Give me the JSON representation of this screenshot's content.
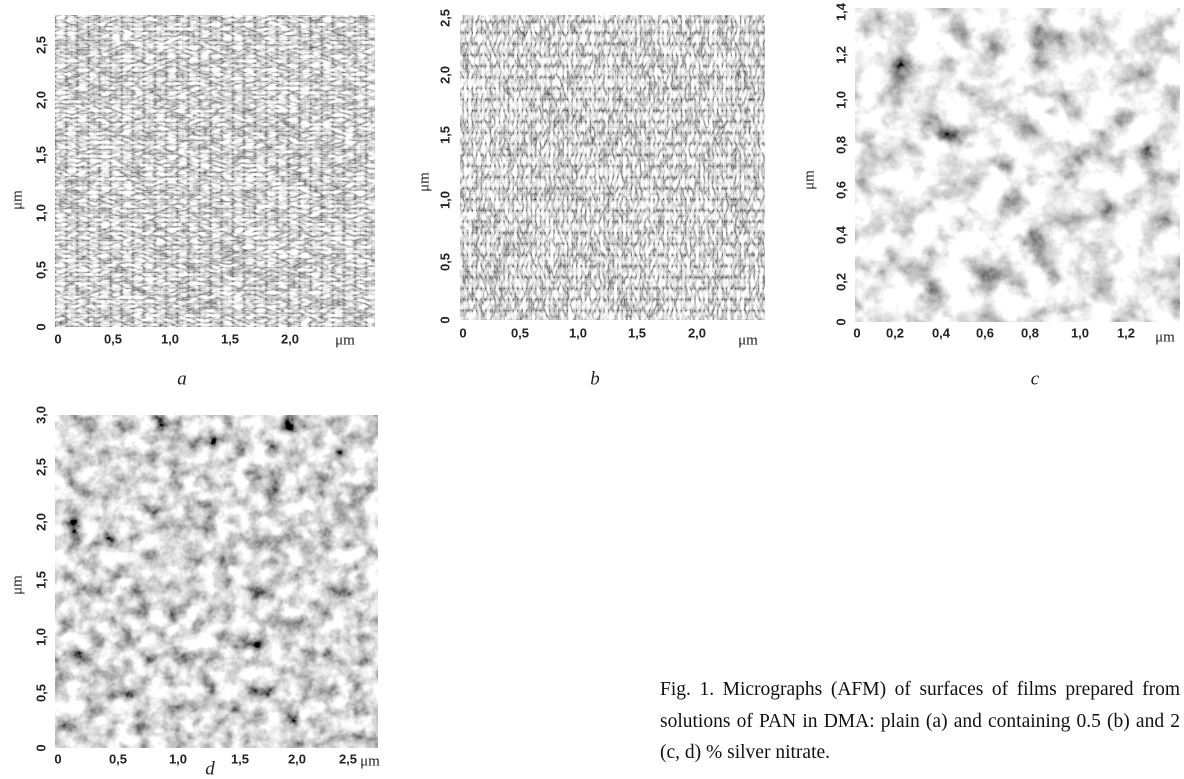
{
  "panels": [
    {
      "letter": "a",
      "x_unit": "μm",
      "y_unit": "μm",
      "x_ticks": [
        "0",
        "0,5",
        "1,0",
        "1,5",
        "2,0"
      ],
      "y_ticks": [
        "0",
        "0,5",
        "1,0",
        "1,5",
        "2,0",
        "2,5"
      ]
    },
    {
      "letter": "b",
      "x_unit": "μm",
      "y_unit": "μm",
      "x_ticks": [
        "0",
        "0,5",
        "1,0",
        "1,5",
        "2,0"
      ],
      "y_ticks": [
        "0",
        "0,5",
        "1,0",
        "1,5",
        "2,0",
        "2,5"
      ]
    },
    {
      "letter": "c",
      "x_unit": "μm",
      "y_unit": "μm",
      "x_ticks": [
        "0",
        "0,2",
        "0,4",
        "0,6",
        "0,8",
        "1,0",
        "1,2"
      ],
      "y_ticks": [
        "0",
        "0,2",
        "0,4",
        "0,6",
        "0,8",
        "1,0",
        "1,2",
        "1,4"
      ]
    },
    {
      "letter": "d",
      "x_unit": "μm",
      "y_unit": "μm",
      "x_ticks": [
        "0",
        "0,5",
        "1,0",
        "1,5",
        "2,0",
        "2,5"
      ],
      "y_ticks": [
        "0",
        "0,5",
        "1,0",
        "1,5",
        "2,0",
        "2,5",
        "3,0"
      ]
    }
  ],
  "caption": {
    "lines": [
      "Fig. 1. Micrographs (AFM) of surfaces of films prepared from",
      "solutions of PAN in DMA: plain (a) and containing 0.5 (b) and 2",
      "(c, d) % silver nitrate."
    ]
  }
}
